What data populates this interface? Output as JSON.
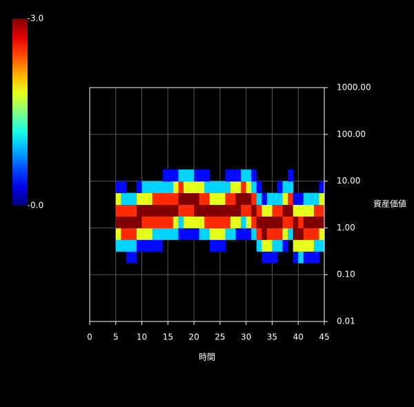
{
  "chart_data": {
    "type": "heatmap",
    "x_label": "時間",
    "y_label": "資産価値",
    "xlim": [
      0,
      45
    ],
    "xticks": [
      0,
      5,
      10,
      15,
      20,
      25,
      30,
      35,
      40,
      45
    ],
    "ylim": [
      0.01,
      1000
    ],
    "log_y": true,
    "grid": true,
    "yticks": [
      {
        "value": 0.01,
        "label": "0.01"
      },
      {
        "value": 0.1,
        "label": "0.10"
      },
      {
        "value": 1,
        "label": "1.00"
      },
      {
        "value": 10,
        "label": "10.00"
      },
      {
        "value": 100,
        "label": "100.00"
      },
      {
        "value": 1000,
        "label": "1000.00"
      }
    ],
    "colorbar": {
      "range": [
        0,
        3
      ],
      "ticks": [
        {
          "value": 0,
          "label": "0.0"
        },
        {
          "value": 3,
          "label": "3.0"
        }
      ]
    },
    "xbins": [
      5,
      6,
      7,
      8,
      9,
      10,
      11,
      12,
      13,
      14,
      15,
      16,
      17,
      18,
      19,
      20,
      21,
      22,
      23,
      24,
      25,
      26,
      27,
      28,
      29,
      30,
      31,
      32,
      33,
      34,
      35,
      36,
      37,
      38,
      39,
      40,
      41,
      42,
      43,
      44,
      45
    ],
    "ybins": [
      0.1,
      0.1778,
      0.3162,
      0.5623,
      1,
      1.778,
      3.162,
      5.623,
      10,
      17.78
    ],
    "z": [
      [
        0,
        0,
        1.0,
        1.8,
        3.0,
        2.5,
        1.8,
        0.4,
        0
      ],
      [
        0,
        0,
        1.0,
        2.5,
        3.0,
        2.5,
        1.0,
        0.4,
        0
      ],
      [
        0,
        0.4,
        1.0,
        2.5,
        3.0,
        2.5,
        1.0,
        0,
        0
      ],
      [
        0,
        0.4,
        1.0,
        2.5,
        3.0,
        2.5,
        1.0,
        0,
        0
      ],
      [
        0,
        0,
        0.4,
        1.8,
        3.0,
        3.0,
        1.8,
        0.4,
        0
      ],
      [
        0,
        0,
        0.4,
        1.8,
        2.5,
        3.0,
        1.8,
        1.0,
        0
      ],
      [
        0,
        0,
        0.4,
        1.8,
        2.5,
        3.0,
        1.8,
        1.0,
        0
      ],
      [
        0,
        0,
        0.4,
        1.0,
        2.5,
        3.0,
        2.5,
        1.0,
        0
      ],
      [
        0,
        0,
        0.4,
        1.0,
        2.5,
        3.0,
        2.5,
        1.0,
        0
      ],
      [
        0,
        0,
        0,
        1.0,
        2.5,
        3.0,
        2.5,
        1.0,
        0.4
      ],
      [
        0,
        0,
        0,
        1.0,
        2.5,
        3.0,
        2.5,
        1.0,
        0.4
      ],
      [
        0,
        0,
        0,
        1.0,
        1.8,
        3.0,
        2.5,
        1.8,
        0.4
      ],
      [
        0,
        0,
        0,
        0.4,
        1.0,
        2.5,
        3.0,
        2.5,
        1.0
      ],
      [
        0,
        0,
        0,
        0.4,
        1.8,
        2.5,
        3.0,
        1.8,
        1.0
      ],
      [
        0,
        0,
        0,
        0.4,
        1.8,
        2.5,
        3.0,
        1.8,
        1.0
      ],
      [
        0,
        0,
        0,
        0.4,
        1.8,
        3.0,
        3.0,
        1.8,
        0.4
      ],
      [
        0,
        0,
        0,
        1.0,
        1.8,
        3.0,
        2.5,
        1.8,
        0.4
      ],
      [
        0,
        0,
        0,
        1.0,
        2.5,
        3.0,
        2.5,
        1.0,
        0.4
      ],
      [
        0,
        0,
        0.4,
        1.8,
        2.5,
        3.0,
        1.8,
        1.0,
        0
      ],
      [
        0,
        0,
        0.4,
        1.8,
        2.5,
        3.0,
        1.8,
        1.0,
        0
      ],
      [
        0,
        0,
        0.4,
        1.8,
        2.5,
        3.0,
        1.8,
        1.0,
        0
      ],
      [
        0,
        0,
        0,
        1.0,
        2.5,
        3.0,
        2.5,
        1.0,
        0.4
      ],
      [
        0,
        0,
        0,
        1.0,
        1.8,
        3.0,
        2.5,
        1.8,
        0.4
      ],
      [
        0,
        0,
        0,
        0.4,
        1.8,
        3.0,
        3.0,
        1.8,
        0.4
      ],
      [
        0,
        0,
        0,
        0.4,
        1.0,
        2.5,
        3.0,
        2.5,
        1.0
      ],
      [
        0,
        0,
        0,
        0.4,
        1.8,
        2.5,
        3.0,
        1.8,
        1.0
      ],
      [
        0,
        0,
        0,
        1.0,
        2.5,
        3.0,
        2.5,
        1.0,
        0.4
      ],
      [
        0,
        0,
        1.0,
        2.5,
        3.0,
        2.5,
        1.0,
        0.4,
        0
      ],
      [
        0,
        0.4,
        1.8,
        3.0,
        3.0,
        1.8,
        0.4,
        0,
        0
      ],
      [
        0,
        0.4,
        1.8,
        2.5,
        3.0,
        1.8,
        1.0,
        0,
        0
      ],
      [
        0,
        0.4,
        1.0,
        2.5,
        3.0,
        2.5,
        1.0,
        0,
        0
      ],
      [
        0,
        0,
        1.0,
        2.5,
        3.0,
        2.5,
        1.0,
        0.4,
        0
      ],
      [
        0,
        0,
        0.4,
        1.8,
        2.5,
        3.0,
        1.8,
        1.0,
        0
      ],
      [
        0,
        0,
        0,
        1.0,
        2.5,
        3.0,
        2.5,
        1.0,
        0.4
      ],
      [
        0,
        0.4,
        1.8,
        3.0,
        3.0,
        1.8,
        0.4,
        0,
        0
      ],
      [
        0,
        1.0,
        1.8,
        3.0,
        2.5,
        1.8,
        0.4,
        0,
        0
      ],
      [
        0,
        0.4,
        1.8,
        2.5,
        3.0,
        1.8,
        1.0,
        0,
        0
      ],
      [
        0,
        0.4,
        1.8,
        2.5,
        3.0,
        1.8,
        1.0,
        0,
        0
      ],
      [
        0,
        0.4,
        1.0,
        2.5,
        3.0,
        2.5,
        1.0,
        0,
        0
      ],
      [
        0,
        0,
        1.0,
        1.8,
        3.0,
        2.5,
        1.8,
        0.4,
        0
      ]
    ]
  }
}
